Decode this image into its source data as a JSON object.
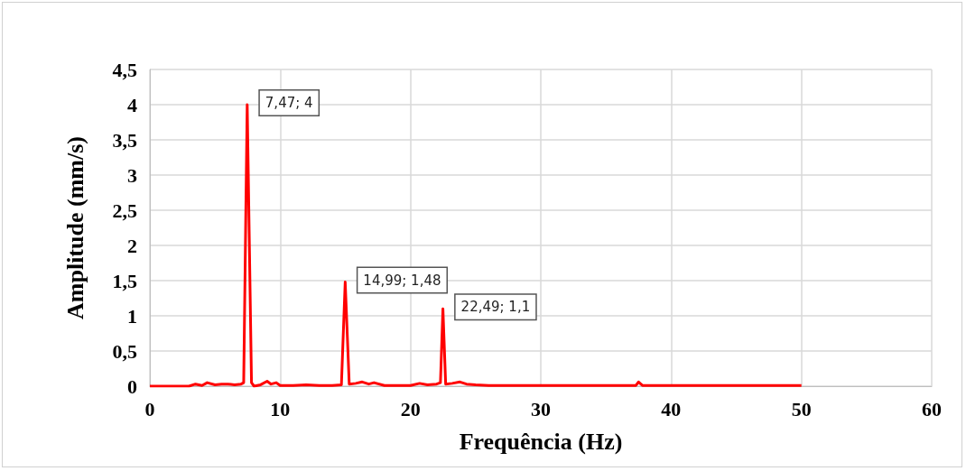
{
  "chart_data": {
    "type": "line",
    "xlabel": "Frequência (Hz)",
    "ylabel": "Amplitude (mm/s)",
    "x": [
      0,
      3,
      3.5,
      4,
      4.4,
      5,
      5.5,
      6,
      6.5,
      7,
      7.2,
      7.47,
      7.8,
      8,
      8.5,
      9,
      9.3,
      9.7,
      10,
      11,
      12,
      13,
      14,
      14.7,
      14.99,
      15.3,
      15.8,
      16.3,
      16.8,
      17.2,
      18,
      19,
      20,
      20.7,
      21.3,
      22,
      22.3,
      22.49,
      22.7,
      23.2,
      23.8,
      24.3,
      25,
      26,
      28,
      30,
      32,
      34,
      36,
      37.3,
      37.5,
      37.8,
      40,
      42,
      44,
      46,
      48,
      50
    ],
    "series": [
      {
        "color": "#ff0000",
        "values": [
          0,
          0,
          0.03,
          0.01,
          0.05,
          0.02,
          0.03,
          0.03,
          0.02,
          0.03,
          0.05,
          4,
          0.05,
          0,
          0.02,
          0.07,
          0.03,
          0.05,
          0.01,
          0.01,
          0.02,
          0.01,
          0.01,
          0.02,
          1.48,
          0.03,
          0.04,
          0.06,
          0.03,
          0.05,
          0.01,
          0.01,
          0.01,
          0.04,
          0.02,
          0.03,
          0.05,
          1.1,
          0.03,
          0.04,
          0.06,
          0.03,
          0.02,
          0.01,
          0.01,
          0.01,
          0.01,
          0.01,
          0.01,
          0.01,
          0.06,
          0.01,
          0.01,
          0.01,
          0.01,
          0.01,
          0.01,
          0.01
        ]
      }
    ],
    "xlim": [
      0,
      60
    ],
    "xticks": [
      0,
      10,
      20,
      30,
      40,
      50,
      60
    ],
    "ylim": [
      0,
      4.5
    ],
    "yticks": [
      {
        "value": 0,
        "label": "0"
      },
      {
        "value": 0.5,
        "label": "0,5"
      },
      {
        "value": 1,
        "label": "1"
      },
      {
        "value": 1.5,
        "label": "1,5"
      },
      {
        "value": 2,
        "label": "2"
      },
      {
        "value": 2.5,
        "label": "2,5"
      },
      {
        "value": 3,
        "label": "3"
      },
      {
        "value": 3.5,
        "label": "3,5"
      },
      {
        "value": 4,
        "label": "4"
      },
      {
        "value": 4.5,
        "label": "4,5"
      }
    ],
    "annotations": [
      {
        "text": "7,47; 4",
        "x": 7.47,
        "y": 4
      },
      {
        "text": "14,99; 1,48",
        "x": 14.99,
        "y": 1.48
      },
      {
        "text": "22,49; 1,1",
        "x": 22.49,
        "y": 1.1
      }
    ],
    "grid": true,
    "marker": "none",
    "line_style": "solid"
  }
}
